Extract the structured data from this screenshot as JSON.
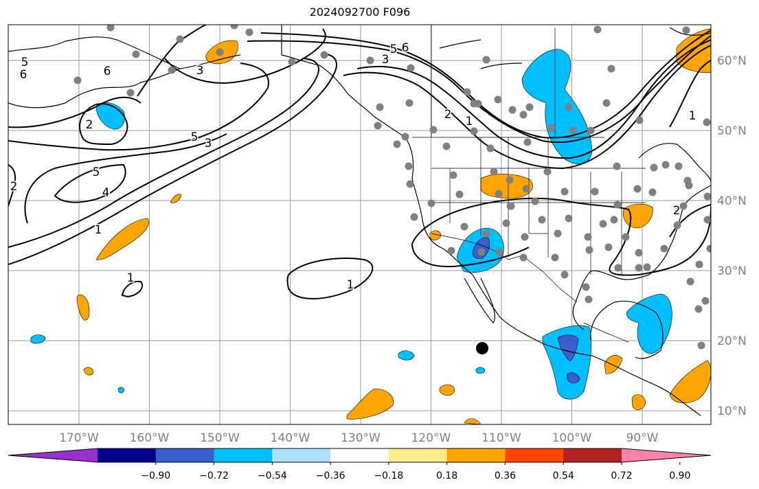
{
  "title": "2024092700 F096",
  "lon_ticks": [
    {
      "label": "170°W",
      "lon": -170
    },
    {
      "label": "160°W",
      "lon": -160
    },
    {
      "label": "150°W",
      "lon": -150
    },
    {
      "label": "140°W",
      "lon": -140
    },
    {
      "label": "130°W",
      "lon": -130
    },
    {
      "label": "120°W",
      "lon": -120
    },
    {
      "label": "110°W",
      "lon": -110
    },
    {
      "label": "100°W",
      "lon": -100
    },
    {
      "label": "90°W",
      "lon": -90
    }
  ],
  "lat_ticks": [
    {
      "label": "60°N",
      "lat": 60
    },
    {
      "label": "50°N",
      "lat": 50
    },
    {
      "label": "40°N",
      "lat": 40
    },
    {
      "label": "30°N",
      "lat": 30
    },
    {
      "label": "20°N",
      "lat": 20
    },
    {
      "label": "10°N",
      "lat": 10
    }
  ],
  "colorbar": {
    "colors": [
      "#9932cc",
      "#00008b",
      "#3a5fcd",
      "#00bfff",
      "#b0e2ff",
      "#ffffff",
      "#ffec8b",
      "#ffa500",
      "#ff4500",
      "#b22222",
      "#ff82ab"
    ],
    "labels": [
      "−0.90",
      "−0.72",
      "−0.54",
      "−0.36",
      "−0.18",
      "0.18",
      "0.36",
      "0.54",
      "0.72",
      "0.90"
    ]
  },
  "contour_labels": [
    "5",
    "6",
    "6",
    "3",
    "2",
    "5",
    "3",
    "5",
    "4",
    "1",
    "2",
    "1",
    "1",
    "6",
    "5",
    "3",
    "2",
    "1",
    "1",
    "2"
  ]
}
